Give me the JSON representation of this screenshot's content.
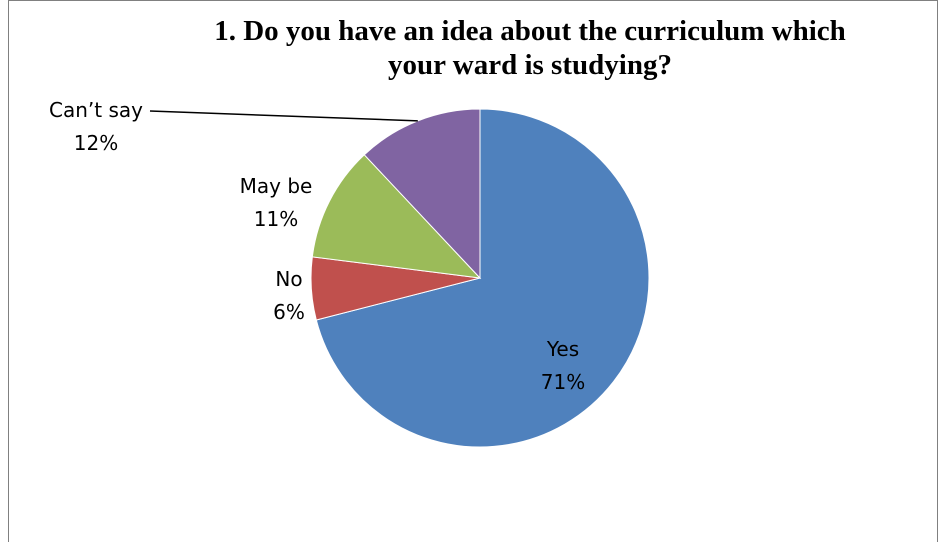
{
  "chart_data": {
    "type": "pie",
    "title_line1": "1. Do you have an idea about the curriculum which",
    "title_line2": "your ward is studying?",
    "slices": [
      {
        "label": "Yes",
        "value": 71,
        "pct": "71%",
        "color": "#4F81BD"
      },
      {
        "label": "No",
        "value": 6,
        "pct": "6%",
        "color": "#C0504D"
      },
      {
        "label": "May be",
        "value": 11,
        "pct": "11%",
        "color": "#9BBB59"
      },
      {
        "label": "Can’t say",
        "value": 12,
        "pct": "12%",
        "color": "#8064A2"
      }
    ],
    "legend": "none",
    "direction": "clockwise-from-top"
  }
}
